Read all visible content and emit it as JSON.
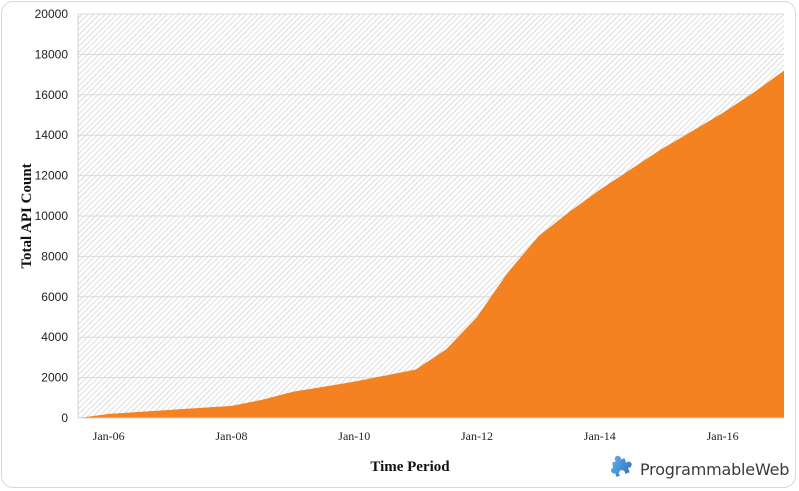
{
  "chart_data": {
    "type": "area",
    "title": "",
    "xlabel": "Time Period",
    "ylabel": "Total API Count",
    "ylim": [
      0,
      20000
    ],
    "yticks": [
      0,
      2000,
      4000,
      6000,
      8000,
      10000,
      12000,
      14000,
      16000,
      18000,
      20000
    ],
    "xtick_labels": [
      "Jan-06",
      "Jan-08",
      "Jan-10",
      "Jan-12",
      "Jan-14",
      "Jan-16"
    ],
    "grid": true,
    "legend": null,
    "fill_color": "#f58220",
    "series": [
      {
        "name": "Total API Count",
        "x": [
          "Jul-05",
          "Jan-06",
          "Jul-06",
          "Jan-07",
          "Jul-07",
          "Jan-08",
          "Jul-08",
          "Jan-09",
          "Jul-09",
          "Jan-10",
          "Jul-10",
          "Jan-11",
          "Jul-11",
          "Jan-12",
          "Jul-12",
          "Jan-13",
          "Jul-13",
          "Jan-14",
          "Jul-14",
          "Jan-15",
          "Jul-15",
          "Jan-16",
          "Jul-16",
          "Jan-17"
        ],
        "values": [
          0,
          200,
          300,
          400,
          500,
          600,
          900,
          1300,
          1550,
          1800,
          2100,
          2400,
          3400,
          5000,
          7200,
          9000,
          10200,
          11300,
          12300,
          13300,
          14200,
          15100,
          16100,
          17200
        ]
      }
    ]
  },
  "branding": {
    "logo_text": "ProgrammableWeb",
    "logo_icon": "puzzle-piece-icon"
  },
  "colors": {
    "area": "#f58220",
    "grid": "#d9d9d9",
    "hatch": "#d0d0d0",
    "logo_blue": "#3a8fd6"
  }
}
